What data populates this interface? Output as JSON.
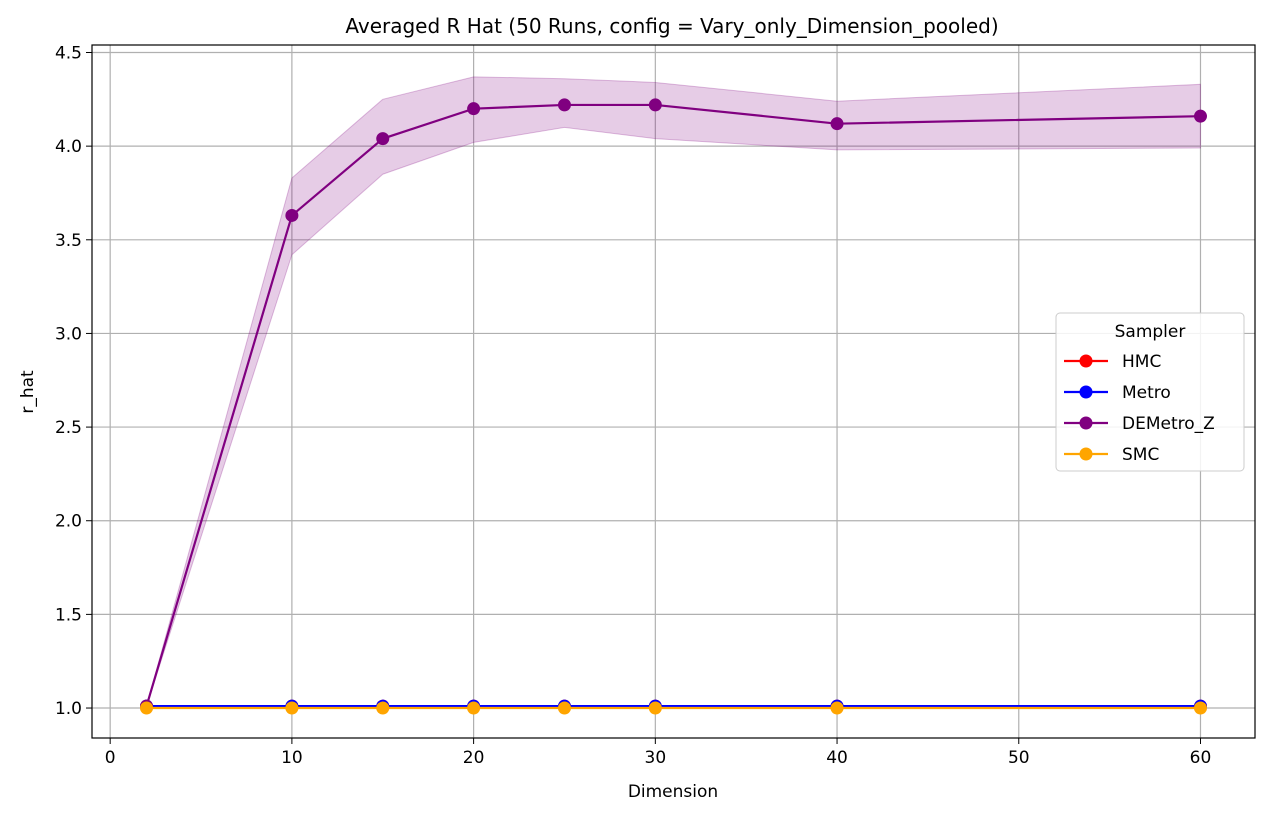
{
  "chart_data": {
    "type": "line",
    "title": "Averaged R Hat (50 Runs, config = Vary_only_Dimension_pooled)",
    "xlabel": "Dimension",
    "ylabel": "r_hat",
    "xlim": [
      -1,
      63
    ],
    "ylim": [
      0.84,
      4.54
    ],
    "xticks": [
      0,
      10,
      20,
      30,
      40,
      50,
      60
    ],
    "yticks": [
      1.0,
      1.5,
      2.0,
      2.5,
      3.0,
      3.5,
      4.0,
      4.5
    ],
    "grid": true,
    "legend": {
      "title": "Sampler",
      "placement": "center-right"
    },
    "x": [
      2,
      10,
      15,
      20,
      25,
      30,
      40,
      60
    ],
    "series": [
      {
        "name": "HMC",
        "color": "#ff0000",
        "values": [
          1.01,
          1.01,
          1.01,
          1.01,
          1.01,
          1.01,
          1.01,
          1.01
        ]
      },
      {
        "name": "Metro",
        "color": "#0000ff",
        "values": [
          1.01,
          1.01,
          1.01,
          1.01,
          1.01,
          1.01,
          1.01,
          1.01
        ]
      },
      {
        "name": "DEMetro_Z",
        "color": "#800080",
        "values": [
          1.01,
          3.63,
          4.04,
          4.2,
          4.22,
          4.22,
          4.12,
          4.16
        ],
        "band_lower": [
          1.01,
          3.42,
          3.85,
          4.02,
          4.1,
          4.04,
          3.98,
          3.99
        ],
        "band_upper": [
          1.01,
          3.83,
          4.25,
          4.37,
          4.36,
          4.34,
          4.24,
          4.33
        ]
      },
      {
        "name": "SMC",
        "color": "#ffa500",
        "values": [
          1.0,
          1.0,
          1.0,
          1.0,
          1.0,
          1.0,
          1.0,
          1.0
        ]
      }
    ]
  }
}
